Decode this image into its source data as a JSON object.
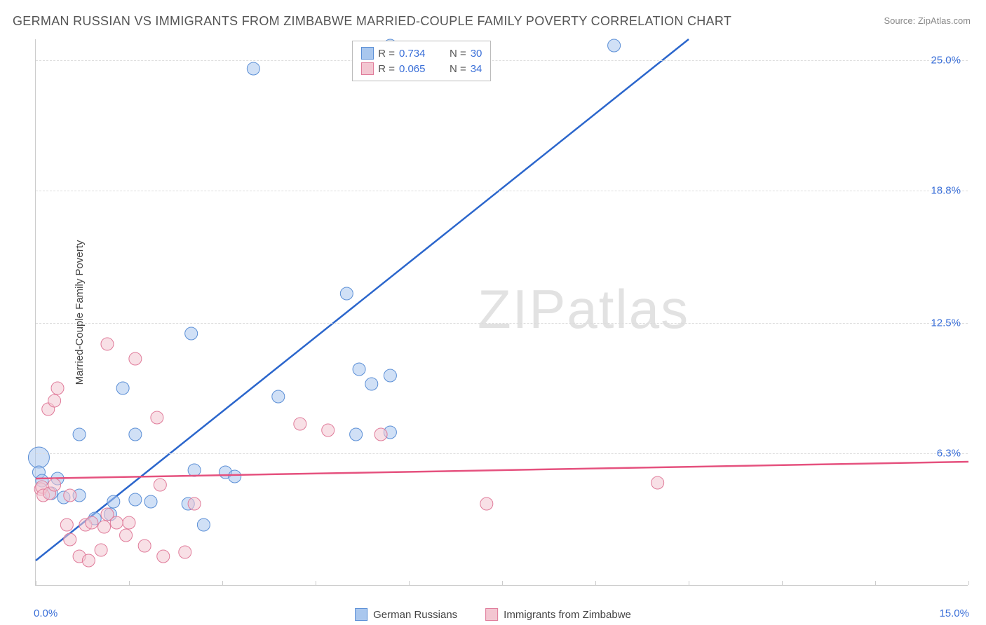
{
  "title": "GERMAN RUSSIAN VS IMMIGRANTS FROM ZIMBABWE MARRIED-COUPLE FAMILY POVERTY CORRELATION CHART",
  "source": "Source: ZipAtlas.com",
  "yaxis_label": "Married-Couple Family Poverty",
  "watermark_bold": "ZIP",
  "watermark_light": "atlas",
  "chart": {
    "type": "scatter",
    "background_color": "#ffffff",
    "grid_color": "#dddddd",
    "axis_color": "#cccccc",
    "xlim": [
      0,
      15
    ],
    "ylim": [
      0,
      26
    ],
    "xtick_positions": [
      0,
      1.5,
      3,
      4.5,
      6,
      7.5,
      9,
      10.5,
      12,
      13.5,
      15
    ],
    "ytick_values": [
      6.3,
      12.5,
      18.8,
      25.0
    ],
    "ytick_labels": [
      "6.3%",
      "12.5%",
      "18.8%",
      "25.0%"
    ],
    "ytick_color": "#3a6fd8",
    "xaxis_labels": {
      "left": "0.0%",
      "right": "15.0%"
    },
    "marker_radius": 9,
    "marker_radius_large": 15,
    "marker_opacity": 0.55,
    "series": [
      {
        "name": "German Russians",
        "fill": "#a9c7ee",
        "stroke": "#5b8fd6",
        "line_color": "#2b66cc",
        "r": 0.734,
        "n": 30,
        "regression": {
          "x1": 0,
          "y1": 1.2,
          "x2": 10.5,
          "y2": 26
        },
        "points": [
          {
            "x": 0.05,
            "y": 6.1,
            "r": 15
          },
          {
            "x": 0.05,
            "y": 5.4
          },
          {
            "x": 0.1,
            "y": 5.0
          },
          {
            "x": 0.25,
            "y": 4.4
          },
          {
            "x": 0.35,
            "y": 5.1
          },
          {
            "x": 0.45,
            "y": 4.2
          },
          {
            "x": 0.7,
            "y": 7.2
          },
          {
            "x": 0.7,
            "y": 4.3
          },
          {
            "x": 0.95,
            "y": 3.2
          },
          {
            "x": 1.2,
            "y": 3.4
          },
          {
            "x": 1.25,
            "y": 4.0
          },
          {
            "x": 1.4,
            "y": 9.4
          },
          {
            "x": 1.6,
            "y": 4.1
          },
          {
            "x": 1.6,
            "y": 7.2
          },
          {
            "x": 1.85,
            "y": 4.0
          },
          {
            "x": 2.45,
            "y": 3.9
          },
          {
            "x": 2.5,
            "y": 12.0
          },
          {
            "x": 2.55,
            "y": 5.5
          },
          {
            "x": 2.7,
            "y": 2.9
          },
          {
            "x": 3.05,
            "y": 5.4
          },
          {
            "x": 3.2,
            "y": 5.2
          },
          {
            "x": 3.5,
            "y": 24.6
          },
          {
            "x": 3.9,
            "y": 9.0
          },
          {
            "x": 5.0,
            "y": 13.9
          },
          {
            "x": 5.15,
            "y": 7.2
          },
          {
            "x": 5.2,
            "y": 10.3
          },
          {
            "x": 5.4,
            "y": 9.6
          },
          {
            "x": 5.7,
            "y": 10.0
          },
          {
            "x": 5.7,
            "y": 25.7
          },
          {
            "x": 5.7,
            "y": 7.3
          },
          {
            "x": 9.3,
            "y": 25.7
          }
        ]
      },
      {
        "name": "Immigrants from Zimbabwe",
        "fill": "#f3c6d1",
        "stroke": "#e07b9a",
        "line_color": "#e5517e",
        "r": 0.065,
        "n": 34,
        "regression": {
          "x1": 0,
          "y1": 5.1,
          "x2": 15,
          "y2": 5.9
        },
        "points": [
          {
            "x": 0.08,
            "y": 4.6
          },
          {
            "x": 0.1,
            "y": 4.7
          },
          {
            "x": 0.12,
            "y": 4.3
          },
          {
            "x": 0.2,
            "y": 8.4
          },
          {
            "x": 0.22,
            "y": 4.4
          },
          {
            "x": 0.3,
            "y": 8.8
          },
          {
            "x": 0.3,
            "y": 4.8
          },
          {
            "x": 0.35,
            "y": 9.4
          },
          {
            "x": 0.5,
            "y": 2.9
          },
          {
            "x": 0.55,
            "y": 2.2
          },
          {
            "x": 0.55,
            "y": 4.3
          },
          {
            "x": 0.7,
            "y": 1.4
          },
          {
            "x": 0.8,
            "y": 2.9
          },
          {
            "x": 0.85,
            "y": 1.2
          },
          {
            "x": 0.9,
            "y": 3.0
          },
          {
            "x": 1.05,
            "y": 1.7
          },
          {
            "x": 1.1,
            "y": 2.8
          },
          {
            "x": 1.15,
            "y": 11.5
          },
          {
            "x": 1.15,
            "y": 3.4
          },
          {
            "x": 1.3,
            "y": 3.0
          },
          {
            "x": 1.45,
            "y": 2.4
          },
          {
            "x": 1.5,
            "y": 3.0
          },
          {
            "x": 1.6,
            "y": 10.8
          },
          {
            "x": 1.75,
            "y": 1.9
          },
          {
            "x": 1.95,
            "y": 8.0
          },
          {
            "x": 2.0,
            "y": 4.8
          },
          {
            "x": 2.05,
            "y": 1.4
          },
          {
            "x": 2.4,
            "y": 1.6
          },
          {
            "x": 2.55,
            "y": 3.9
          },
          {
            "x": 4.25,
            "y": 7.7
          },
          {
            "x": 4.7,
            "y": 7.4
          },
          {
            "x": 5.55,
            "y": 7.2
          },
          {
            "x": 7.25,
            "y": 3.9
          },
          {
            "x": 10.0,
            "y": 4.9
          }
        ]
      }
    ]
  },
  "legend_top": {
    "r_label": "R =",
    "n_label": "N =",
    "text_color": "#555555",
    "value_color": "#3a6fd8"
  },
  "legend_bottom": {
    "series1": "German Russians",
    "series2": "Immigrants from Zimbabwe"
  },
  "typography": {
    "title_fontsize": 18,
    "title_color": "#555555",
    "axis_label_fontsize": 15,
    "axis_label_color": "#444444",
    "tick_fontsize": 15,
    "source_fontsize": 13,
    "source_color": "#888888",
    "watermark_fontsize": 78,
    "watermark_color": "#cccccc"
  }
}
